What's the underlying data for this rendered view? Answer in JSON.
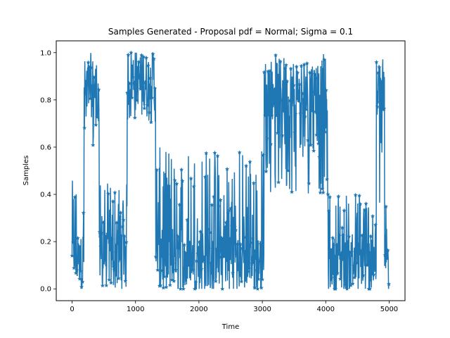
{
  "chart_data": {
    "type": "line",
    "title": "Samples Generated - Proposal pdf = Normal; Sigma = 0.1",
    "xlabel": "Time",
    "ylabel": "Samples",
    "xlim": [
      -250,
      5250
    ],
    "ylim": [
      -0.05,
      1.05
    ],
    "x_ticks": [
      0,
      1000,
      2000,
      3000,
      4000,
      5000
    ],
    "x_tick_labels": [
      "0",
      "1000",
      "2000",
      "3000",
      "4000",
      "5000"
    ],
    "y_ticks": [
      0.0,
      0.2,
      0.4,
      0.6,
      0.8,
      1.0
    ],
    "y_tick_labels": [
      "0.0",
      "0.2",
      "0.4",
      "0.6",
      "0.8",
      "1.0"
    ],
    "grid": false,
    "legend": "none",
    "marker": "star",
    "n_samples": 5000,
    "series": [
      {
        "color": "#1f77b4",
        "segments": [
          {
            "x_start": 0,
            "x_end": 190,
            "low": 0.0,
            "high": 0.46,
            "center": 0.1
          },
          {
            "x_start": 190,
            "x_end": 430,
            "low": 0.55,
            "high": 1.0,
            "center": 0.85
          },
          {
            "x_start": 430,
            "x_end": 870,
            "low": 0.0,
            "high": 0.45,
            "center": 0.12
          },
          {
            "x_start": 870,
            "x_end": 1320,
            "low": 0.7,
            "high": 1.0,
            "center": 0.9
          },
          {
            "x_start": 1320,
            "x_end": 3030,
            "low": 0.0,
            "high": 0.6,
            "center": 0.1
          },
          {
            "x_start": 3030,
            "x_end": 4030,
            "low": 0.4,
            "high": 1.0,
            "center": 0.85
          },
          {
            "x_start": 4030,
            "x_end": 4800,
            "low": 0.0,
            "high": 0.42,
            "center": 0.1
          },
          {
            "x_start": 4800,
            "x_end": 4930,
            "low": 0.3,
            "high": 1.0,
            "center": 0.85
          },
          {
            "x_start": 4930,
            "x_end": 5000,
            "low": 0.0,
            "high": 0.4,
            "center": 0.1
          }
        ]
      }
    ]
  }
}
